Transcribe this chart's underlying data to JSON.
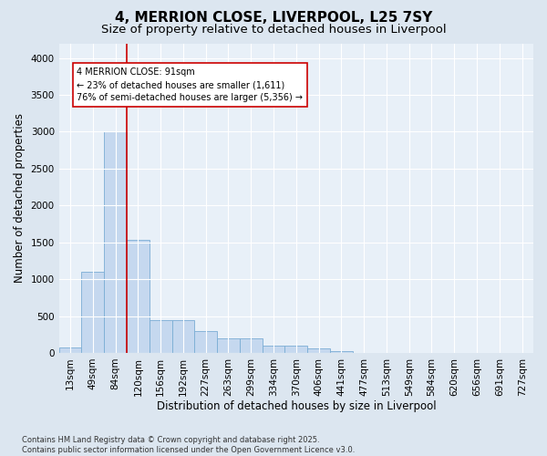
{
  "title1": "4, MERRION CLOSE, LIVERPOOL, L25 7SY",
  "title2": "Size of property relative to detached houses in Liverpool",
  "xlabel": "Distribution of detached houses by size in Liverpool",
  "ylabel": "Number of detached properties",
  "categories": [
    "13sqm",
    "49sqm",
    "84sqm",
    "120sqm",
    "156sqm",
    "192sqm",
    "227sqm",
    "263sqm",
    "299sqm",
    "334sqm",
    "370sqm",
    "406sqm",
    "441sqm",
    "477sqm",
    "513sqm",
    "549sqm",
    "584sqm",
    "620sqm",
    "656sqm",
    "691sqm",
    "727sqm"
  ],
  "values": [
    70,
    1100,
    3000,
    1530,
    450,
    450,
    300,
    200,
    200,
    100,
    100,
    60,
    30,
    0,
    0,
    0,
    0,
    0,
    0,
    0,
    0
  ],
  "bar_color": "#c5d8ef",
  "bar_edge_color": "#7aadd4",
  "vline_x_index": 2,
  "vline_color": "#cc0000",
  "annotation_text": "4 MERRION CLOSE: 91sqm\n← 23% of detached houses are smaller (1,611)\n76% of semi-detached houses are larger (5,356) →",
  "annotation_box_color": "#ffffff",
  "annotation_box_edge_color": "#cc0000",
  "ylim": [
    0,
    4200
  ],
  "yticks": [
    0,
    500,
    1000,
    1500,
    2000,
    2500,
    3000,
    3500,
    4000
  ],
  "bg_color": "#dce6f0",
  "plot_bg_color": "#e8f0f8",
  "footer": "Contains HM Land Registry data © Crown copyright and database right 2025.\nContains public sector information licensed under the Open Government Licence v3.0.",
  "title_fontsize": 11,
  "subtitle_fontsize": 9.5,
  "xlabel_fontsize": 8.5,
  "ylabel_fontsize": 8.5,
  "tick_fontsize": 7.5,
  "annotation_fontsize": 7,
  "footer_fontsize": 6
}
